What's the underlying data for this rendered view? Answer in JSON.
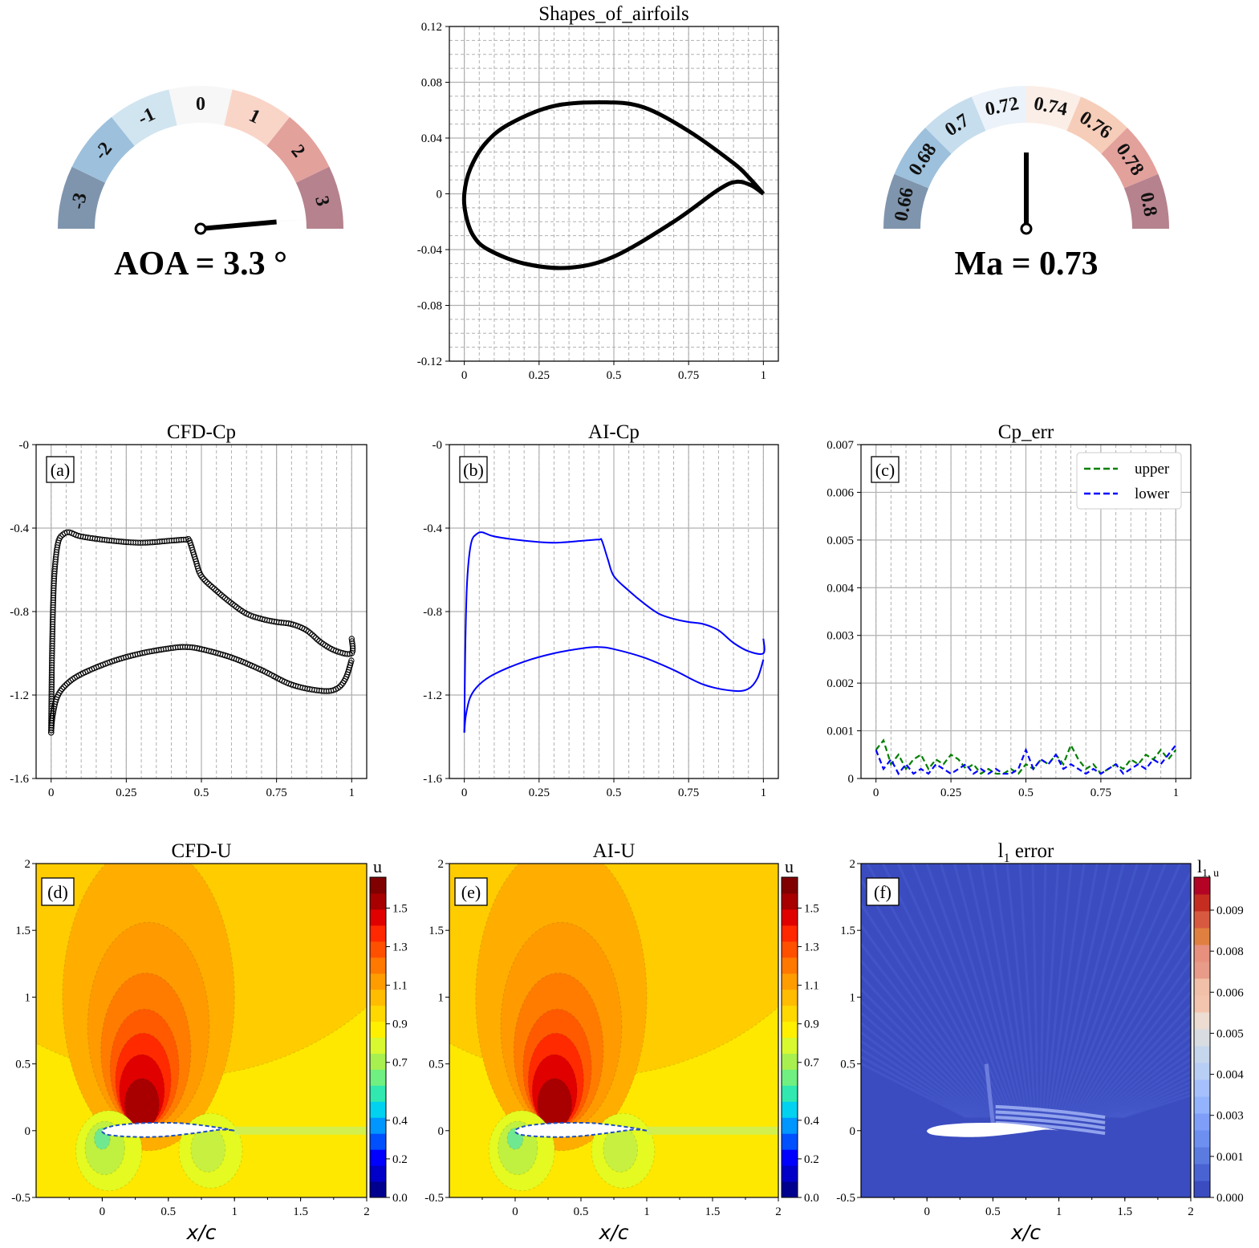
{
  "gauges": [
    {
      "label": "AOA = 3.3 °",
      "variable": "AOA",
      "value": 3.3,
      "unit": "°",
      "range": [
        -3.5,
        3.5
      ],
      "ticks": [
        "-3",
        "-2",
        "-1",
        "0",
        "1",
        "2",
        "3"
      ],
      "colors": [
        "#7f95ad",
        "#9dc0dc",
        "#d1e5f0",
        "#f7f7f7",
        "#f9d5c8",
        "#e3a19c",
        "#b5828e"
      ]
    },
    {
      "label": "Ma = 0.73",
      "variable": "Ma",
      "value": 0.73,
      "range": [
        0.65,
        0.81
      ],
      "ticks": [
        "0.66",
        "0.68",
        "0.7",
        "0.72",
        "0.74",
        "0.76",
        "0.78",
        "0.8"
      ],
      "colors": [
        "#7f95ad",
        "#9dc0dc",
        "#c6dded",
        "#ebf2f9",
        "#fbeee7",
        "#f6cdb9",
        "#e3a19c",
        "#b5828e"
      ]
    }
  ],
  "chart_data": [
    {
      "id": "shape",
      "type": "line",
      "title": "Shapes_of_airfoils",
      "xlim": [
        -0.05,
        1.05
      ],
      "ylim": [
        -0.12,
        0.12
      ],
      "xticks": [
        "0",
        "0.25",
        "0.5",
        "0.75",
        "1"
      ],
      "xtick_values": [
        0,
        0.25,
        0.5,
        0.75,
        1
      ],
      "yticks": [
        "0.12",
        "0.08",
        "0.04",
        "0",
        "-0.04",
        "-0.08",
        "-0.12"
      ],
      "ytick_values": [
        0.12,
        0.08,
        0.04,
        0,
        -0.04,
        -0.08,
        -0.12
      ],
      "grid": "major solid, minor dashed",
      "series": [
        {
          "x": [
            1,
            0.95,
            0.9,
            0.75,
            0.6,
            0.47,
            0.3,
            0.15,
            0.07,
            0.02,
            0,
            0.005,
            0.03,
            0.08,
            0.2,
            0.35,
            0.5,
            0.7,
            0.85,
            0.91,
            0.96,
            1
          ],
          "y": [
            0,
            0.012,
            0.022,
            0.045,
            0.062,
            0.0656,
            0.063,
            0.05,
            0.036,
            0.018,
            0,
            -0.015,
            -0.03,
            -0.04,
            -0.05,
            -0.053,
            -0.045,
            -0.02,
            0.003,
            0.0086,
            0.006,
            0
          ],
          "color": "#000000"
        }
      ]
    },
    {
      "id": "a",
      "type": "scatter",
      "title": "CFD-Cp",
      "panel": "(a)",
      "xlim": [
        -0.05,
        1.05
      ],
      "ylim": [
        0,
        -1.6
      ],
      "xticks": [
        "0",
        "0.25",
        "0.5",
        "0.75",
        "1"
      ],
      "xtick_values": [
        0,
        0.25,
        0.5,
        0.75,
        1
      ],
      "yticks": [
        "-0",
        "-0.4",
        "-0.8",
        "-1.2",
        "-1.6"
      ],
      "ytick_values": [
        0,
        -0.4,
        -0.8,
        -1.2,
        -1.6
      ],
      "series": [
        {
          "x": [
            0,
            0.003,
            0.008,
            0.015,
            0.025,
            0.04,
            0.06,
            0.1,
            0.2,
            0.3,
            0.4,
            0.45,
            0.46,
            0.48,
            0.5,
            0.55,
            0.6,
            0.65,
            0.7,
            0.75,
            0.8,
            0.85,
            0.9,
            0.95,
            1.0,
            1.0
          ],
          "y": [
            -1.38,
            -1.0,
            -0.7,
            -0.55,
            -0.46,
            -0.43,
            -0.42,
            -0.44,
            -0.46,
            -0.47,
            -0.46,
            -0.455,
            -0.46,
            -0.55,
            -0.63,
            -0.7,
            -0.76,
            -0.81,
            -0.835,
            -0.85,
            -0.86,
            -0.89,
            -0.95,
            -0.99,
            -1.0,
            -0.93
          ],
          "color": "#000000",
          "marker": "open-circle"
        },
        {
          "x": [
            0,
            0.005,
            0.02,
            0.05,
            0.1,
            0.2,
            0.3,
            0.4,
            0.45,
            0.5,
            0.6,
            0.7,
            0.8,
            0.9,
            0.95,
            0.98,
            1.0
          ],
          "y": [
            -1.38,
            -1.3,
            -1.21,
            -1.15,
            -1.1,
            -1.04,
            -1.0,
            -0.975,
            -0.97,
            -0.98,
            -1.02,
            -1.08,
            -1.15,
            -1.18,
            -1.17,
            -1.12,
            -1.03
          ],
          "color": "#000000",
          "marker": "open-circle"
        }
      ]
    },
    {
      "id": "b",
      "type": "line",
      "title": "AI-Cp",
      "panel": "(b)",
      "xlim": [
        -0.05,
        1.05
      ],
      "ylim": [
        0,
        -1.6
      ],
      "xticks": [
        "0",
        "0.25",
        "0.5",
        "0.75",
        "1"
      ],
      "xtick_values": [
        0,
        0.25,
        0.5,
        0.75,
        1
      ],
      "yticks": [
        "-0",
        "-0.4",
        "-0.8",
        "-1.2",
        "-1.6"
      ],
      "ytick_values": [
        0,
        -0.4,
        -0.8,
        -1.2,
        -1.6
      ],
      "series": [
        {
          "x": [
            0,
            0.003,
            0.008,
            0.015,
            0.025,
            0.04,
            0.06,
            0.1,
            0.2,
            0.3,
            0.4,
            0.45,
            0.46,
            0.48,
            0.5,
            0.55,
            0.6,
            0.65,
            0.7,
            0.75,
            0.8,
            0.85,
            0.9,
            0.95,
            1.0,
            1.0
          ],
          "y": [
            -1.38,
            -1.0,
            -0.7,
            -0.55,
            -0.46,
            -0.43,
            -0.42,
            -0.44,
            -0.46,
            -0.47,
            -0.46,
            -0.455,
            -0.46,
            -0.55,
            -0.63,
            -0.7,
            -0.76,
            -0.81,
            -0.835,
            -0.85,
            -0.86,
            -0.89,
            -0.95,
            -0.99,
            -1.0,
            -0.93
          ],
          "color": "#0000ff"
        },
        {
          "x": [
            0,
            0.005,
            0.02,
            0.05,
            0.1,
            0.2,
            0.3,
            0.4,
            0.45,
            0.5,
            0.6,
            0.7,
            0.8,
            0.9,
            0.95,
            0.98,
            1.0
          ],
          "y": [
            -1.38,
            -1.3,
            -1.21,
            -1.15,
            -1.1,
            -1.04,
            -1.0,
            -0.975,
            -0.97,
            -0.98,
            -1.02,
            -1.08,
            -1.15,
            -1.18,
            -1.17,
            -1.12,
            -1.03
          ],
          "color": "#0000ff"
        }
      ]
    },
    {
      "id": "c",
      "type": "line",
      "title": "Cp_err",
      "panel": "(c)",
      "xlim": [
        -0.05,
        1.05
      ],
      "ylim": [
        0,
        0.007
      ],
      "xticks": [
        "0",
        "0.25",
        "0.5",
        "0.75",
        "1"
      ],
      "xtick_values": [
        0,
        0.25,
        0.5,
        0.75,
        1
      ],
      "yticks": [
        "0",
        "0.001",
        "0.002",
        "0.003",
        "0.004",
        "0.005",
        "0.006",
        "0.007"
      ],
      "ytick_values": [
        0,
        0.001,
        0.002,
        0.003,
        0.004,
        0.005,
        0.006,
        0.007
      ],
      "legend": "top-right",
      "x": [
        0,
        0.025,
        0.05,
        0.075,
        0.1,
        0.125,
        0.15,
        0.175,
        0.2,
        0.225,
        0.25,
        0.275,
        0.3,
        0.325,
        0.35,
        0.375,
        0.4,
        0.425,
        0.45,
        0.475,
        0.5,
        0.525,
        0.55,
        0.575,
        0.6,
        0.625,
        0.65,
        0.675,
        0.7,
        0.725,
        0.75,
        0.775,
        0.8,
        0.825,
        0.85,
        0.875,
        0.9,
        0.925,
        0.95,
        0.975,
        1
      ],
      "series": [
        {
          "name": "upper",
          "color": "#007f00",
          "dash": "dashed",
          "values": [
            0.0006,
            0.0008,
            0.0003,
            0.0005,
            0.0002,
            0.0004,
            0.0005,
            0.0002,
            0.0004,
            0.0003,
            0.0005,
            0.0004,
            0.0002,
            0.0003,
            0.0001,
            0.0002,
            0.0001,
            0.0001,
            0.0002,
            0.0001,
            0.0003,
            0.0002,
            0.0004,
            0.0003,
            0.0005,
            0.0003,
            0.0007,
            0.0004,
            0.0002,
            0.0003,
            0.0001,
            0.0002,
            0.0003,
            0.0002,
            0.0004,
            0.0003,
            0.0005,
            0.0004,
            0.0006,
            0.0004,
            0.0006
          ]
        },
        {
          "name": "lower",
          "color": "#0000ff",
          "dash": "dashed",
          "values": [
            0.0006,
            0.0002,
            0.0004,
            0.0001,
            0.0003,
            0.0001,
            0.0002,
            0.0001,
            0.0003,
            0.0002,
            0.0001,
            0.0002,
            0.0003,
            0.0001,
            0.0002,
            0.0001,
            0.0002,
            0.0001,
            0.0001,
            0.0002,
            0.0006,
            0.0002,
            0.0004,
            0.0003,
            0.0005,
            0.0002,
            0.0003,
            0.0002,
            0.0001,
            0.0002,
            0.0001,
            0.0002,
            0.0003,
            0.0001,
            0.0002,
            0.0003,
            0.0002,
            0.0004,
            0.0003,
            0.0005,
            0.0007
          ]
        }
      ]
    },
    {
      "id": "d",
      "type": "heatmap",
      "title": "CFD-U",
      "panel": "(d)",
      "xlabel": "x/c",
      "xlim": [
        -0.5,
        2
      ],
      "ylim": [
        -0.5,
        2
      ],
      "xticks": [
        "0",
        "0.5",
        "1",
        "1.5",
        "2"
      ],
      "xtick_values": [
        0,
        0.5,
        1,
        1.5,
        2
      ],
      "yticks": [
        "2",
        "1.5",
        "1",
        "0.5",
        "0",
        "-0.5"
      ],
      "ytick_values": [
        2,
        1.5,
        1,
        0.5,
        0,
        -0.5
      ],
      "colorbar": {
        "label": "u",
        "range": [
          0,
          1.66
        ],
        "ticks": [
          "1.5",
          "1.3",
          "1.1",
          "0.9",
          "0.7",
          "0.4",
          "0.2",
          "0.0"
        ],
        "tick_values": [
          1.5,
          1.3,
          1.1,
          0.9,
          0.7,
          0.4,
          0.2,
          0.0
        ],
        "colormap": "jet"
      }
    },
    {
      "id": "e",
      "type": "heatmap",
      "title": "AI-U",
      "panel": "(e)",
      "xlabel": "x/c",
      "xlim": [
        -0.5,
        2
      ],
      "ylim": [
        -0.5,
        2
      ],
      "xticks": [
        "0",
        "0.5",
        "1",
        "1.5",
        "2"
      ],
      "xtick_values": [
        0,
        0.5,
        1,
        1.5,
        2
      ],
      "yticks": [
        "2",
        "1.5",
        "1",
        "0.5",
        "0",
        "-0.5"
      ],
      "ytick_values": [
        2,
        1.5,
        1,
        0.5,
        0,
        -0.5
      ],
      "colorbar": {
        "label": "u",
        "range": [
          0,
          1.66
        ],
        "ticks": [
          "1.5",
          "1.3",
          "1.1",
          "0.9",
          "0.7",
          "0.4",
          "0.2",
          "0.0"
        ],
        "tick_values": [
          1.5,
          1.3,
          1.1,
          0.9,
          0.7,
          0.4,
          0.2,
          0.0
        ],
        "colormap": "jet"
      }
    },
    {
      "id": "f",
      "type": "heatmap",
      "title": "l",
      "title_sub": "1",
      "title_rest": " error",
      "panel": "(f)",
      "xlabel": "x/c",
      "xlim": [
        -0.5,
        2
      ],
      "ylim": [
        -0.5,
        2
      ],
      "xticks": [
        "0",
        "0.5",
        "1",
        "1.5",
        "2"
      ],
      "xtick_values": [
        0,
        0.5,
        1,
        1.5,
        2
      ],
      "yticks": [
        "2",
        "1.5",
        "1",
        "0.5",
        "0",
        "-0.5"
      ],
      "ytick_values": [
        2,
        1.5,
        1,
        0.5,
        0,
        -0.5
      ],
      "colorbar": {
        "label": "l",
        "label_sub": "1, u",
        "ticks": [
          "0.009",
          "0.008",
          "0.006",
          "0.005",
          "0.004",
          "0.003",
          "0.001",
          "0.000"
        ],
        "colormap": "coolwarm"
      }
    }
  ]
}
